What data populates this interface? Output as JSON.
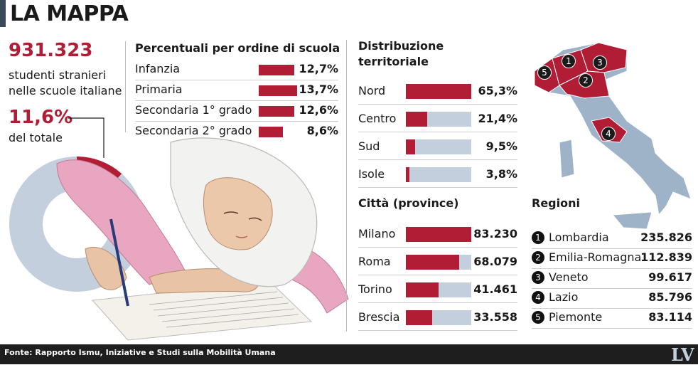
{
  "title": "LA MAPPA",
  "total_students": "931.323",
  "total_desc_1": "studenti stranieri",
  "total_desc_2": "nelle scuole italiane",
  "share_pct": "11,6%",
  "share_desc": "del totale",
  "footer": "Fonte: Rapporto Ismu, Iniziative e Studi sulla Mobilità Umana",
  "logo": "LV",
  "colors": {
    "accent": "#b01d35",
    "bar_bg": "#c3cfdc",
    "donut_bg": "#c3cfdc",
    "map_land": "#9fb3c8"
  },
  "chart_data": [
    {
      "type": "pie",
      "title": "",
      "values": [
        11.6,
        88.4
      ],
      "labels": [
        "11,6%",
        ""
      ]
    },
    {
      "type": "bar",
      "title": "Percentuali per ordine di scuola",
      "categories": [
        "Infanzia",
        "Primaria",
        "Secondaria 1° grado",
        "Secondaria 2° grado"
      ],
      "values": [
        12.7,
        13.7,
        12.6,
        8.6
      ],
      "labels": [
        "12,7%",
        "13,7%",
        "12,6%",
        "8,6%"
      ]
    },
    {
      "type": "bar",
      "title": "Distribuzione territoriale",
      "categories": [
        "Nord",
        "Centro",
        "Sud",
        "Isole"
      ],
      "values": [
        65.3,
        21.4,
        9.5,
        3.8
      ],
      "labels": [
        "65,3%",
        "21,4%",
        "9,5%",
        "3,8%"
      ],
      "ylim": [
        0,
        65.3
      ]
    },
    {
      "type": "bar",
      "title": "Città (province)",
      "categories": [
        "Milano",
        "Roma",
        "Torino",
        "Brescia"
      ],
      "values": [
        83230,
        68079,
        41461,
        33558
      ],
      "labels": [
        "83.230",
        "68.079",
        "41.461",
        "33.558"
      ],
      "ylim": [
        0,
        83230
      ]
    },
    {
      "type": "table",
      "title": "Regioni",
      "rows": [
        {
          "num": "1",
          "name": "Lombardia",
          "value": "235.826"
        },
        {
          "num": "2",
          "name": "Emilia-Romagna",
          "value": "112.839"
        },
        {
          "num": "3",
          "name": "Veneto",
          "value": "99.617"
        },
        {
          "num": "4",
          "name": "Lazio",
          "value": "85.796"
        },
        {
          "num": "5",
          "name": "Piemonte",
          "value": "83.114"
        }
      ]
    }
  ]
}
